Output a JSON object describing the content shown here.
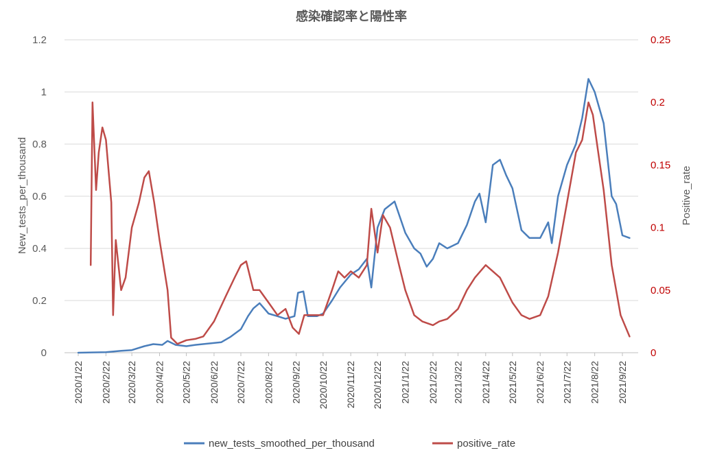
{
  "chart_data": {
    "type": "line",
    "title": "感染確認率と陽性率",
    "xlabel": "",
    "ylabel": "New_tests_per_thousand",
    "ylabel_right": "Positive_rate",
    "ylim": [
      0,
      1.2
    ],
    "ylim_right": [
      0,
      0.25
    ],
    "yticks": [
      "0",
      "0.2",
      "0.4",
      "0.6",
      "0.8",
      "1",
      "1.2"
    ],
    "yticks_right": [
      "0",
      "0.05",
      "0.1",
      "0.15",
      "0.2",
      "0.25"
    ],
    "x_categories": [
      "2020/1/22",
      "2020/2/22",
      "2020/3/22",
      "2020/4/22",
      "2020/5/22",
      "2020/6/22",
      "2020/7/22",
      "2020/8/22",
      "2020/9/22",
      "2020/10/22",
      "2020/11/22",
      "2020/12/22",
      "2021/1/22",
      "2021/2/22",
      "2021/3/22",
      "2021/4/22",
      "2021/5/22",
      "2021/6/22",
      "2021/7/22",
      "2021/8/22",
      "2021/9/22"
    ],
    "grid": true,
    "legend_position": "bottom",
    "series": [
      {
        "name": "new_tests_smoothed_per_thousand",
        "axis": "left",
        "color": "#4a7ebb",
        "points": [
          [
            "2020/1/22",
            0
          ],
          [
            "2020/2/22",
            0.002
          ],
          [
            "2020/3/10",
            0.007
          ],
          [
            "2020/3/22",
            0.01
          ],
          [
            "2020/4/5",
            0.025
          ],
          [
            "2020/4/15",
            0.033
          ],
          [
            "2020/4/25",
            0.03
          ],
          [
            "2020/5/1",
            0.045
          ],
          [
            "2020/5/10",
            0.03
          ],
          [
            "2020/5/22",
            0.025
          ],
          [
            "2020/6/1",
            0.03
          ],
          [
            "2020/6/15",
            0.035
          ],
          [
            "2020/6/30",
            0.04
          ],
          [
            "2020/7/10",
            0.06
          ],
          [
            "2020/7/22",
            0.09
          ],
          [
            "2020/7/30",
            0.14
          ],
          [
            "2020/8/5",
            0.17
          ],
          [
            "2020/8/12",
            0.19
          ],
          [
            "2020/8/22",
            0.15
          ],
          [
            "2020/9/1",
            0.14
          ],
          [
            "2020/9/10",
            0.13
          ],
          [
            "2020/9/20",
            0.14
          ],
          [
            "2020/9/24",
            0.23
          ],
          [
            "2020/9/30",
            0.235
          ],
          [
            "2020/10/5",
            0.14
          ],
          [
            "2020/10/15",
            0.14
          ],
          [
            "2020/10/22",
            0.15
          ],
          [
            "2020/11/1",
            0.2
          ],
          [
            "2020/11/10",
            0.25
          ],
          [
            "2020/11/22",
            0.3
          ],
          [
            "2020/12/1",
            0.32
          ],
          [
            "2020/12/10",
            0.36
          ],
          [
            "2020/12/15",
            0.25
          ],
          [
            "2020/12/22",
            0.48
          ],
          [
            "2020/12/30",
            0.55
          ],
          [
            "2021/1/10",
            0.58
          ],
          [
            "2021/1/22",
            0.46
          ],
          [
            "2021/2/1",
            0.4
          ],
          [
            "2021/2/8",
            0.38
          ],
          [
            "2021/2/15",
            0.33
          ],
          [
            "2021/2/22",
            0.36
          ],
          [
            "2021/3/1",
            0.42
          ],
          [
            "2021/3/10",
            0.4
          ],
          [
            "2021/3/22",
            0.42
          ],
          [
            "2021/4/1",
            0.49
          ],
          [
            "2021/4/10",
            0.58
          ],
          [
            "2021/4/15",
            0.61
          ],
          [
            "2021/4/22",
            0.5
          ],
          [
            "2021/4/30",
            0.72
          ],
          [
            "2021/5/8",
            0.74
          ],
          [
            "2021/5/15",
            0.68
          ],
          [
            "2021/5/22",
            0.63
          ],
          [
            "2021/6/1",
            0.47
          ],
          [
            "2021/6/10",
            0.44
          ],
          [
            "2021/6/22",
            0.44
          ],
          [
            "2021/7/1",
            0.5
          ],
          [
            "2021/7/5",
            0.42
          ],
          [
            "2021/7/12",
            0.6
          ],
          [
            "2021/7/22",
            0.72
          ],
          [
            "2021/8/1",
            0.8
          ],
          [
            "2021/8/8",
            0.9
          ],
          [
            "2021/8/15",
            1.05
          ],
          [
            "2021/8/22",
            1.0
          ],
          [
            "2021/9/1",
            0.88
          ],
          [
            "2021/9/10",
            0.6
          ],
          [
            "2021/9/15",
            0.57
          ],
          [
            "2021/9/22",
            0.45
          ],
          [
            "2021/9/30",
            0.44
          ]
        ]
      },
      {
        "name": "positive_rate",
        "axis": "right",
        "color": "#be4b48",
        "points": [
          [
            "2020/2/5",
            0.07
          ],
          [
            "2020/2/7",
            0.2
          ],
          [
            "2020/2/11",
            0.13
          ],
          [
            "2020/2/14",
            0.16
          ],
          [
            "2020/2/18",
            0.18
          ],
          [
            "2020/2/22",
            0.17
          ],
          [
            "2020/2/28",
            0.12
          ],
          [
            "2020/3/1",
            0.03
          ],
          [
            "2020/3/4",
            0.09
          ],
          [
            "2020/3/10",
            0.05
          ],
          [
            "2020/3/15",
            0.06
          ],
          [
            "2020/3/22",
            0.1
          ],
          [
            "2020/3/30",
            0.12
          ],
          [
            "2020/4/5",
            0.14
          ],
          [
            "2020/4/10",
            0.145
          ],
          [
            "2020/4/16",
            0.12
          ],
          [
            "2020/4/22",
            0.09
          ],
          [
            "2020/5/1",
            0.05
          ],
          [
            "2020/5/5",
            0.012
          ],
          [
            "2020/5/12",
            0.007
          ],
          [
            "2020/5/22",
            0.01
          ],
          [
            "2020/6/1",
            0.011
          ],
          [
            "2020/6/10",
            0.013
          ],
          [
            "2020/6/22",
            0.025
          ],
          [
            "2020/7/5",
            0.045
          ],
          [
            "2020/7/15",
            0.06
          ],
          [
            "2020/7/22",
            0.07
          ],
          [
            "2020/7/28",
            0.073
          ],
          [
            "2020/8/5",
            0.05
          ],
          [
            "2020/8/12",
            0.05
          ],
          [
            "2020/8/22",
            0.04
          ],
          [
            "2020/9/1",
            0.03
          ],
          [
            "2020/9/10",
            0.035
          ],
          [
            "2020/9/18",
            0.02
          ],
          [
            "2020/9/25",
            0.015
          ],
          [
            "2020/10/1",
            0.03
          ],
          [
            "2020/10/10",
            0.03
          ],
          [
            "2020/10/22",
            0.03
          ],
          [
            "2020/11/1",
            0.05
          ],
          [
            "2020/11/8",
            0.065
          ],
          [
            "2020/11/15",
            0.06
          ],
          [
            "2020/11/22",
            0.065
          ],
          [
            "2020/12/1",
            0.06
          ],
          [
            "2020/12/10",
            0.07
          ],
          [
            "2020/12/15",
            0.115
          ],
          [
            "2020/12/22",
            0.08
          ],
          [
            "2020/12/28",
            0.11
          ],
          [
            "2021/1/5",
            0.1
          ],
          [
            "2021/1/15",
            0.07
          ],
          [
            "2021/1/22",
            0.05
          ],
          [
            "2021/2/1",
            0.03
          ],
          [
            "2021/2/10",
            0.025
          ],
          [
            "2021/2/22",
            0.022
          ],
          [
            "2021/3/1",
            0.025
          ],
          [
            "2021/3/10",
            0.027
          ],
          [
            "2021/3/22",
            0.035
          ],
          [
            "2021/4/1",
            0.05
          ],
          [
            "2021/4/10",
            0.06
          ],
          [
            "2021/4/22",
            0.07
          ],
          [
            "2021/4/30",
            0.065
          ],
          [
            "2021/5/8",
            0.06
          ],
          [
            "2021/5/15",
            0.05
          ],
          [
            "2021/5/22",
            0.04
          ],
          [
            "2021/6/1",
            0.03
          ],
          [
            "2021/6/10",
            0.027
          ],
          [
            "2021/6/22",
            0.03
          ],
          [
            "2021/7/1",
            0.045
          ],
          [
            "2021/7/12",
            0.08
          ],
          [
            "2021/7/22",
            0.12
          ],
          [
            "2021/8/1",
            0.16
          ],
          [
            "2021/8/8",
            0.17
          ],
          [
            "2021/8/15",
            0.2
          ],
          [
            "2021/8/20",
            0.19
          ],
          [
            "2021/8/26",
            0.16
          ],
          [
            "2021/9/1",
            0.13
          ],
          [
            "2021/9/10",
            0.07
          ],
          [
            "2021/9/20",
            0.03
          ],
          [
            "2021/9/30",
            0.013
          ]
        ]
      }
    ]
  }
}
